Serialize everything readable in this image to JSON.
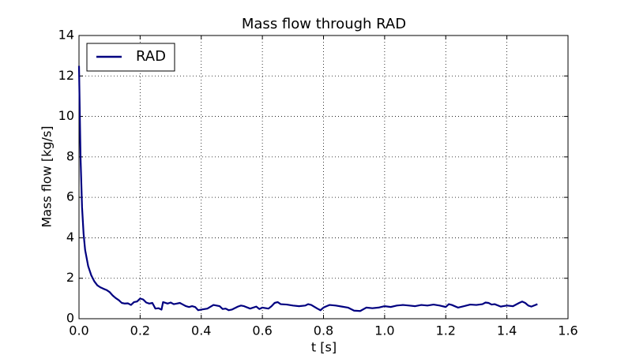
{
  "chart_data": {
    "type": "line",
    "title": "Mass flow through RAD",
    "x_label": "t [s]",
    "y_label": "Mass flow [kg/s]",
    "x": [
      0,
      0.005,
      0.01,
      0.015,
      0.02,
      0.03,
      0.04,
      0.05,
      0.06,
      0.07,
      0.08,
      0.09,
      0.1,
      0.11,
      0.12,
      0.13,
      0.14,
      0.15,
      0.16,
      0.17,
      0.18,
      0.19,
      0.2,
      0.21,
      0.22,
      0.23,
      0.24,
      0.25,
      0.26,
      0.27,
      0.275,
      0.29,
      0.3,
      0.31,
      0.32,
      0.33,
      0.34,
      0.35,
      0.36,
      0.37,
      0.38,
      0.39,
      0.4,
      0.42,
      0.44,
      0.45,
      0.46,
      0.47,
      0.48,
      0.49,
      0.5,
      0.52,
      0.53,
      0.54,
      0.56,
      0.58,
      0.59,
      0.6,
      0.62,
      0.63,
      0.64,
      0.65,
      0.66,
      0.68,
      0.7,
      0.72,
      0.74,
      0.75,
      0.76,
      0.78,
      0.79,
      0.8,
      0.81,
      0.82,
      0.84,
      0.86,
      0.88,
      0.9,
      0.92,
      0.94,
      0.96,
      0.98,
      1.0,
      1.02,
      1.04,
      1.06,
      1.08,
      1.1,
      1.12,
      1.14,
      1.16,
      1.18,
      1.2,
      1.21,
      1.22,
      1.24,
      1.26,
      1.28,
      1.3,
      1.32,
      1.33,
      1.34,
      1.35,
      1.36,
      1.38,
      1.4,
      1.42,
      1.44,
      1.45,
      1.46,
      1.47,
      1.48,
      1.5
    ],
    "series": [
      {
        "name": "RAD",
        "color": "#000080",
        "values": [
          12.5,
          8.0,
          5.5,
          4.2,
          3.4,
          2.6,
          2.15,
          1.85,
          1.65,
          1.55,
          1.48,
          1.42,
          1.32,
          1.15,
          1.02,
          0.92,
          0.78,
          0.75,
          0.76,
          0.68,
          0.82,
          0.85,
          1.0,
          0.95,
          0.8,
          0.75,
          0.78,
          0.5,
          0.52,
          0.45,
          0.82,
          0.75,
          0.8,
          0.72,
          0.75,
          0.78,
          0.7,
          0.62,
          0.58,
          0.62,
          0.58,
          0.42,
          0.45,
          0.5,
          0.68,
          0.65,
          0.62,
          0.48,
          0.5,
          0.42,
          0.45,
          0.6,
          0.65,
          0.62,
          0.5,
          0.6,
          0.48,
          0.55,
          0.5,
          0.62,
          0.78,
          0.82,
          0.72,
          0.7,
          0.65,
          0.62,
          0.65,
          0.72,
          0.68,
          0.5,
          0.42,
          0.55,
          0.62,
          0.68,
          0.65,
          0.6,
          0.55,
          0.4,
          0.38,
          0.55,
          0.52,
          0.55,
          0.62,
          0.58,
          0.65,
          0.68,
          0.65,
          0.62,
          0.68,
          0.65,
          0.7,
          0.65,
          0.58,
          0.72,
          0.68,
          0.55,
          0.62,
          0.7,
          0.68,
          0.72,
          0.8,
          0.78,
          0.7,
          0.72,
          0.6,
          0.65,
          0.62,
          0.78,
          0.85,
          0.78,
          0.65,
          0.6,
          0.72
        ]
      }
    ],
    "xlim": [
      0,
      1.6
    ],
    "xticks": [
      {
        "value": 0,
        "label": "0.0"
      },
      0.2,
      0.4,
      0.6,
      0.8,
      {
        "value": 1,
        "label": "1.0"
      },
      1.2,
      1.4,
      1.6
    ],
    "ylim": [
      0,
      14
    ],
    "yticks": [
      0,
      2,
      4,
      6,
      8,
      10,
      12,
      14
    ],
    "grid": true,
    "legend": "upper left"
  }
}
